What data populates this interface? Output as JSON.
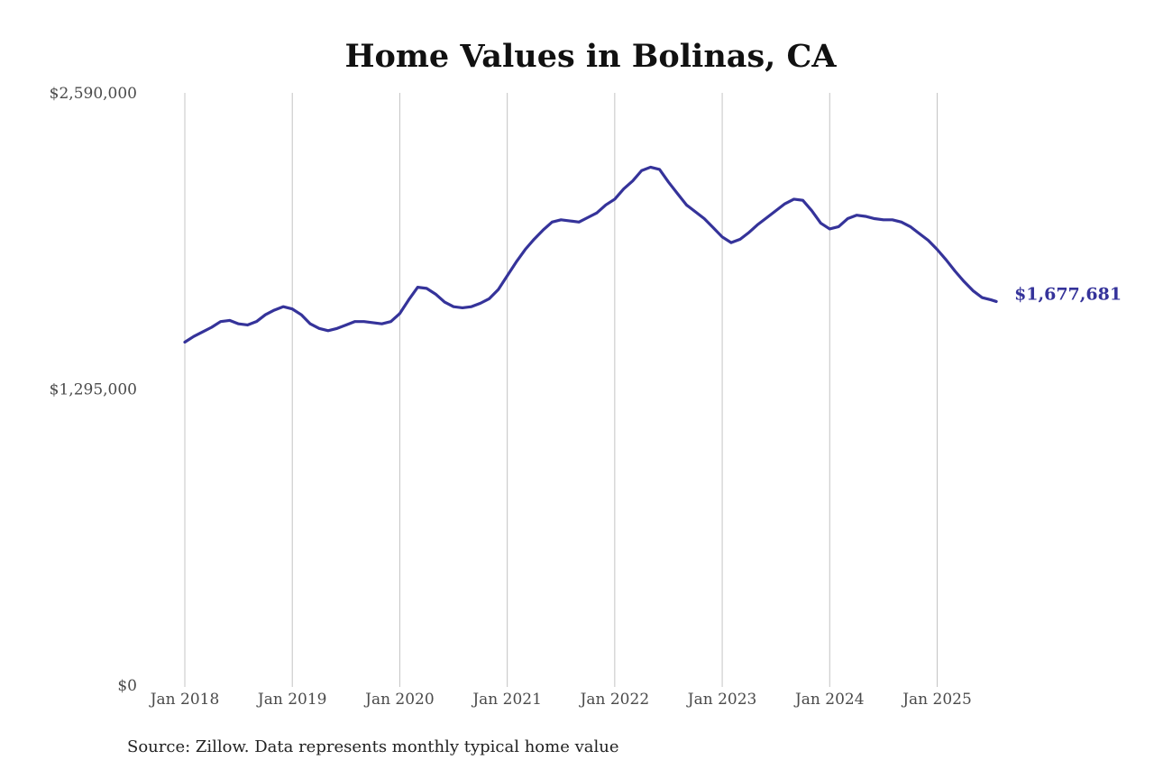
{
  "chart_data": {
    "type": "line",
    "title": "Home Values in Bolinas, CA",
    "source": "Source: Zillow. Data represents monthly typical home value",
    "ylim": [
      0,
      2590000
    ],
    "xlim": [
      2018.0,
      2025.55
    ],
    "y_ticks": [
      {
        "value": 0,
        "label": "$0"
      },
      {
        "value": 1295000,
        "label": "$1,295,000"
      },
      {
        "value": 2590000,
        "label": "$2,590,000"
      }
    ],
    "x_ticks": [
      {
        "value": 2018,
        "label": "Jan 2018"
      },
      {
        "value": 2019,
        "label": "Jan 2019"
      },
      {
        "value": 2020,
        "label": "Jan 2020"
      },
      {
        "value": 2021,
        "label": "Jan 2021"
      },
      {
        "value": 2022,
        "label": "Jan 2022"
      },
      {
        "value": 2023,
        "label": "Jan 2023"
      },
      {
        "value": 2024,
        "label": "Jan 2024"
      },
      {
        "value": 2025,
        "label": "Jan 2025"
      }
    ],
    "vertical_grid": true,
    "horizontal_grid": false,
    "line_color": "#35339a",
    "end_label": "$1,677,681",
    "series": [
      {
        "x": [
          2018.0,
          2018.083,
          2018.167,
          2018.25,
          2018.333,
          2018.417,
          2018.5,
          2018.583,
          2018.667,
          2018.75,
          2018.833,
          2018.917,
          2019.0,
          2019.083,
          2019.167,
          2019.25,
          2019.333,
          2019.417,
          2019.5,
          2019.583,
          2019.667,
          2019.75,
          2019.833,
          2019.917,
          2020.0,
          2020.083,
          2020.167,
          2020.25,
          2020.333,
          2020.417,
          2020.5,
          2020.583,
          2020.667,
          2020.75,
          2020.833,
          2020.917,
          2021.0,
          2021.083,
          2021.167,
          2021.25,
          2021.333,
          2021.417,
          2021.5,
          2021.583,
          2021.667,
          2021.75,
          2021.833,
          2021.917,
          2022.0,
          2022.083,
          2022.167,
          2022.25,
          2022.333,
          2022.417,
          2022.5,
          2022.583,
          2022.667,
          2022.75,
          2022.833,
          2022.917,
          2023.0,
          2023.083,
          2023.167,
          2023.25,
          2023.333,
          2023.417,
          2023.5,
          2023.583,
          2023.667,
          2023.75,
          2023.833,
          2023.917,
          2024.0,
          2024.083,
          2024.167,
          2024.25,
          2024.333,
          2024.417,
          2024.5,
          2024.583,
          2024.667,
          2024.75,
          2024.833,
          2024.917,
          2025.0,
          2025.083,
          2025.167,
          2025.25,
          2025.333,
          2025.417,
          2025.5,
          2025.55
        ],
        "y": [
          1500000,
          1525000,
          1545000,
          1565000,
          1590000,
          1595000,
          1580000,
          1575000,
          1590000,
          1620000,
          1640000,
          1655000,
          1645000,
          1620000,
          1580000,
          1560000,
          1550000,
          1560000,
          1575000,
          1590000,
          1590000,
          1585000,
          1580000,
          1590000,
          1625000,
          1685000,
          1740000,
          1735000,
          1710000,
          1675000,
          1655000,
          1650000,
          1655000,
          1670000,
          1690000,
          1730000,
          1790000,
          1850000,
          1905000,
          1950000,
          1990000,
          2025000,
          2035000,
          2030000,
          2025000,
          2045000,
          2065000,
          2100000,
          2125000,
          2170000,
          2205000,
          2250000,
          2265000,
          2255000,
          2200000,
          2150000,
          2100000,
          2070000,
          2040000,
          2000000,
          1960000,
          1935000,
          1950000,
          1980000,
          2015000,
          2045000,
          2075000,
          2105000,
          2125000,
          2120000,
          2075000,
          2020000,
          1995000,
          2005000,
          2040000,
          2055000,
          2050000,
          2040000,
          2035000,
          2035000,
          2025000,
          2005000,
          1975000,
          1945000,
          1905000,
          1860000,
          1810000,
          1765000,
          1725000,
          1695000,
          1685000,
          1677681
        ]
      }
    ]
  }
}
